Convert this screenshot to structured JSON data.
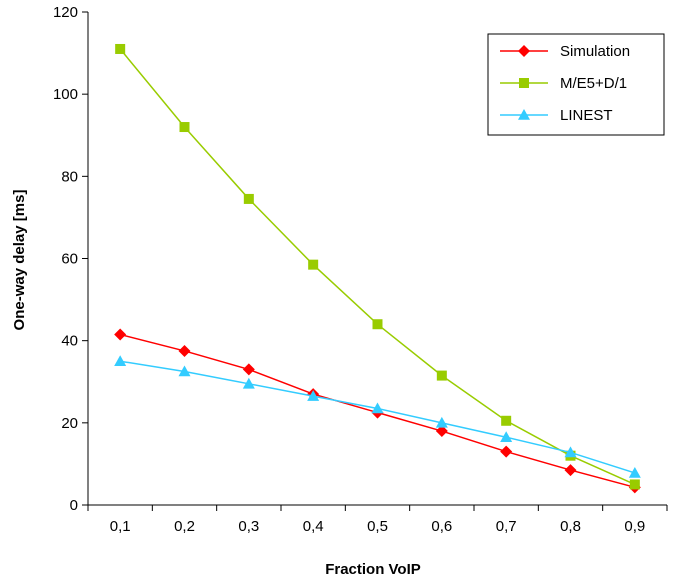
{
  "chart_data": {
    "type": "line",
    "title": "",
    "xlabel": "Fraction VoIP",
    "ylabel": "One-way delay [ms]",
    "categories": [
      "0,1",
      "0,2",
      "0,3",
      "0,4",
      "0,5",
      "0,6",
      "0,7",
      "0,8",
      "0,9"
    ],
    "ylim": [
      0,
      120
    ],
    "yticks": [
      0,
      20,
      40,
      60,
      80,
      100,
      120
    ],
    "grid": false,
    "legend_position": "top-right",
    "series": [
      {
        "name": "Simulation",
        "color": "#ff0000",
        "marker": "diamond",
        "values": [
          41.5,
          37.5,
          33,
          27,
          22.5,
          18,
          13,
          8.5,
          4.3
        ]
      },
      {
        "name": "M/E5+D/1",
        "color": "#99cc00",
        "marker": "square",
        "values": [
          111,
          92,
          74.5,
          58.5,
          44,
          31.5,
          20.5,
          12,
          5
        ]
      },
      {
        "name": "LINEST",
        "color": "#33ccff",
        "marker": "triangle",
        "values": [
          35,
          32.5,
          29.5,
          26.5,
          23.5,
          20,
          16.5,
          12.8,
          7.8
        ]
      }
    ]
  }
}
